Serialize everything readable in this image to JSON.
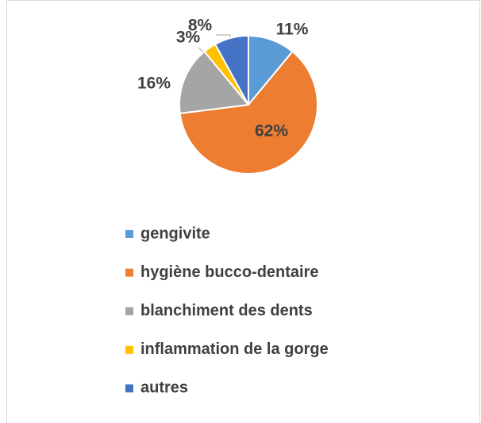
{
  "chart_data": {
    "type": "pie",
    "categories": [
      "gengivite",
      "hygiène bucco-dentaire",
      "blanchiment des dents",
      "inflammation de la gorge",
      "autres"
    ],
    "values": [
      11,
      62,
      16,
      3,
      8
    ],
    "value_labels": [
      "11%",
      "62%",
      "16%",
      "3%",
      "8%"
    ],
    "colors": [
      "#5b9bd5",
      "#ed7d31",
      "#a5a5a5",
      "#ffc000",
      "#4472c4"
    ]
  }
}
